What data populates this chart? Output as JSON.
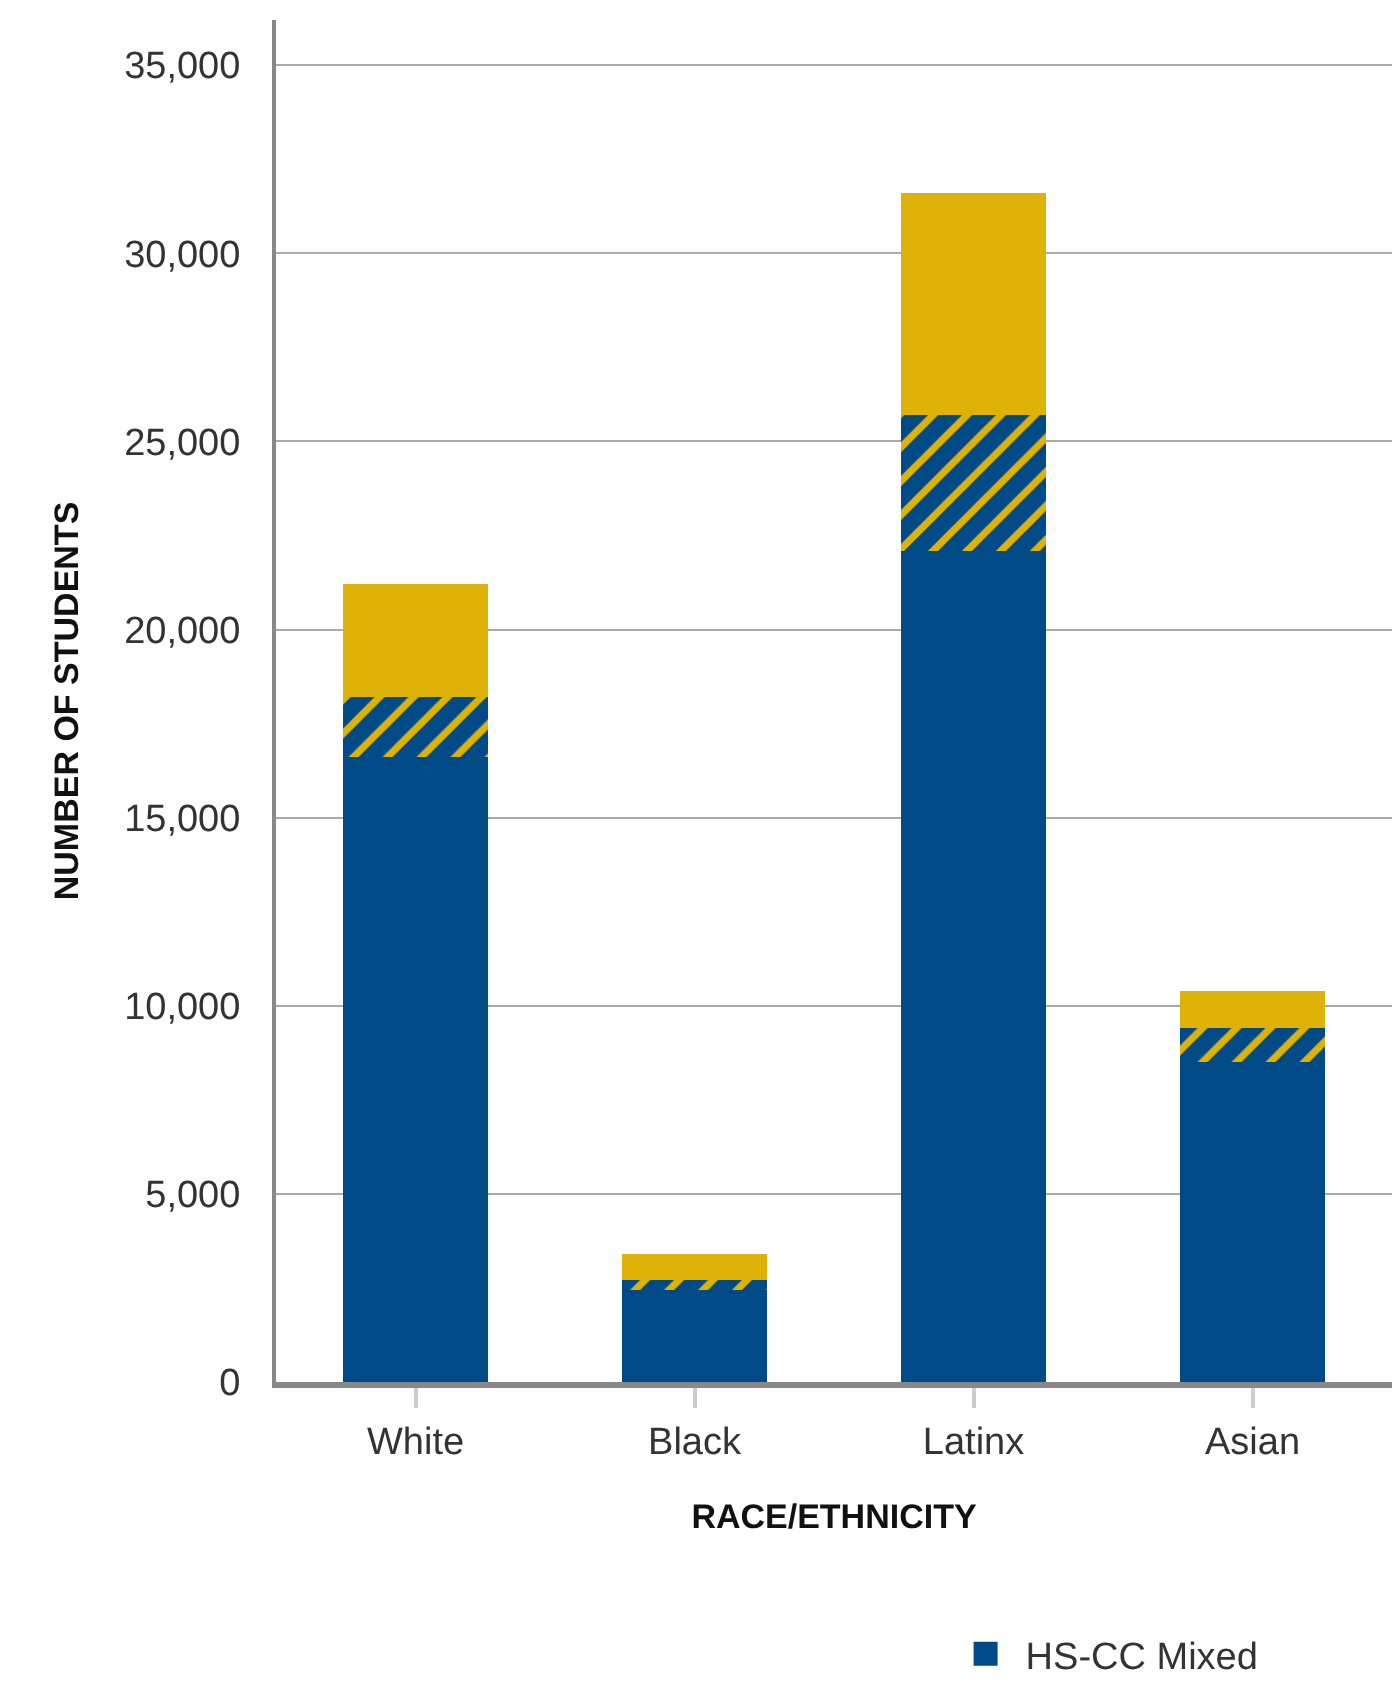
{
  "chart_data": {
    "type": "bar",
    "stacked": true,
    "xlabel": "RACE/ETHNICITY",
    "ylabel": "NUMBER OF STUDENTS",
    "categories": [
      "White",
      "Black",
      "Latinx",
      "Asian"
    ],
    "series": [
      {
        "name": "HS-CC Mixed",
        "color": "#004b87",
        "values": [
          16600,
          2450,
          22100,
          8500
        ]
      },
      {
        "color": "#004b87",
        "values": [
          1600,
          250,
          3600,
          900
        ]
      },
      {
        "color": "#dfb20a",
        "values": [
          3000,
          700,
          5900,
          1000
        ]
      }
    ],
    "ylim": [
      0,
      36200
    ],
    "yticks": [
      0,
      {
        "value": 5000,
        "label": "5,000"
      },
      {
        "value": 10000,
        "label": "10,000"
      },
      {
        "value": 15000,
        "label": "15,000"
      },
      {
        "value": 20000,
        "label": "20,000"
      },
      {
        "value": 25000,
        "label": "25,000"
      },
      {
        "value": 30000,
        "label": "30,000"
      },
      {
        "value": 35000,
        "label": "35,000"
      }
    ],
    "grid": "y",
    "legend": "bottom"
  }
}
